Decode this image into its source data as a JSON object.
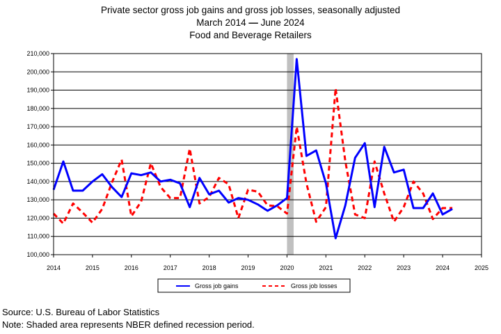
{
  "chart_data": {
    "type": "line",
    "title": "Private sector gross job gains and gross job losses, seasonally adjusted",
    "subtitle_line1": "March 2014",
    "subtitle_line2": "June 2024",
    "subtitle_dash": "—",
    "subtitle_industry": "Food and Beverage Retailers",
    "ylim": [
      100000,
      210000
    ],
    "y_ticks": [
      "100,000",
      "110,000",
      "120,000",
      "130,000",
      "140,000",
      "150,000",
      "160,000",
      "170,000",
      "180,000",
      "190,000",
      "200,000",
      "210,000"
    ],
    "xlim": [
      2014,
      2025
    ],
    "x_ticks": [
      "2014",
      "2015",
      "2016",
      "2017",
      "2018",
      "2019",
      "2020",
      "2021",
      "2022",
      "2023",
      "2024",
      "2025"
    ],
    "recession": {
      "start": 2020.0,
      "end": 2020.17
    },
    "x": [
      2014.0,
      2014.25,
      2014.5,
      2014.75,
      2015.0,
      2015.25,
      2015.5,
      2015.75,
      2016.0,
      2016.25,
      2016.5,
      2016.75,
      2017.0,
      2017.25,
      2017.5,
      2017.75,
      2018.0,
      2018.25,
      2018.5,
      2018.75,
      2019.0,
      2019.25,
      2019.5,
      2019.75,
      2020.0,
      2020.25,
      2020.5,
      2020.75,
      2021.0,
      2021.25,
      2021.5,
      2021.75,
      2022.0,
      2022.25,
      2022.5,
      2022.75,
      2023.0,
      2023.25,
      2023.5,
      2023.75,
      2024.0,
      2024.25
    ],
    "series": [
      {
        "name": "Gross job gains",
        "color": "#0000ff",
        "style": "solid",
        "values": [
          135500,
          151000,
          135000,
          135000,
          140000,
          144000,
          137000,
          131500,
          144500,
          143500,
          145000,
          140000,
          141000,
          139000,
          126000,
          142000,
          133000,
          135000,
          128500,
          131000,
          130000,
          127500,
          124000,
          127000,
          131000,
          207000,
          154000,
          157000,
          139000,
          109000,
          127000,
          153000,
          161000,
          126000,
          159000,
          145000,
          146500,
          125500,
          125500,
          133500,
          122000,
          125000
        ]
      },
      {
        "name": "Gross job losses",
        "color": "#ff0000",
        "style": "dashed",
        "values": [
          122500,
          117000,
          128000,
          123000,
          117500,
          125000,
          139500,
          152000,
          121000,
          129000,
          150000,
          137000,
          131000,
          131000,
          158000,
          128000,
          131500,
          142000,
          138500,
          120000,
          135500,
          134500,
          127000,
          126500,
          122500,
          170000,
          139000,
          118000,
          126000,
          191000,
          151000,
          122000,
          120000,
          151000,
          133500,
          118000,
          126000,
          140000,
          133500,
          119500,
          125500,
          125500
        ]
      }
    ],
    "legend_position": "bottom-center",
    "grid": "horizontal"
  },
  "footer": {
    "source": "Source: U.S. Bureau of Labor Statistics",
    "note": "Note: Shaded area represents NBER defined recession period."
  }
}
